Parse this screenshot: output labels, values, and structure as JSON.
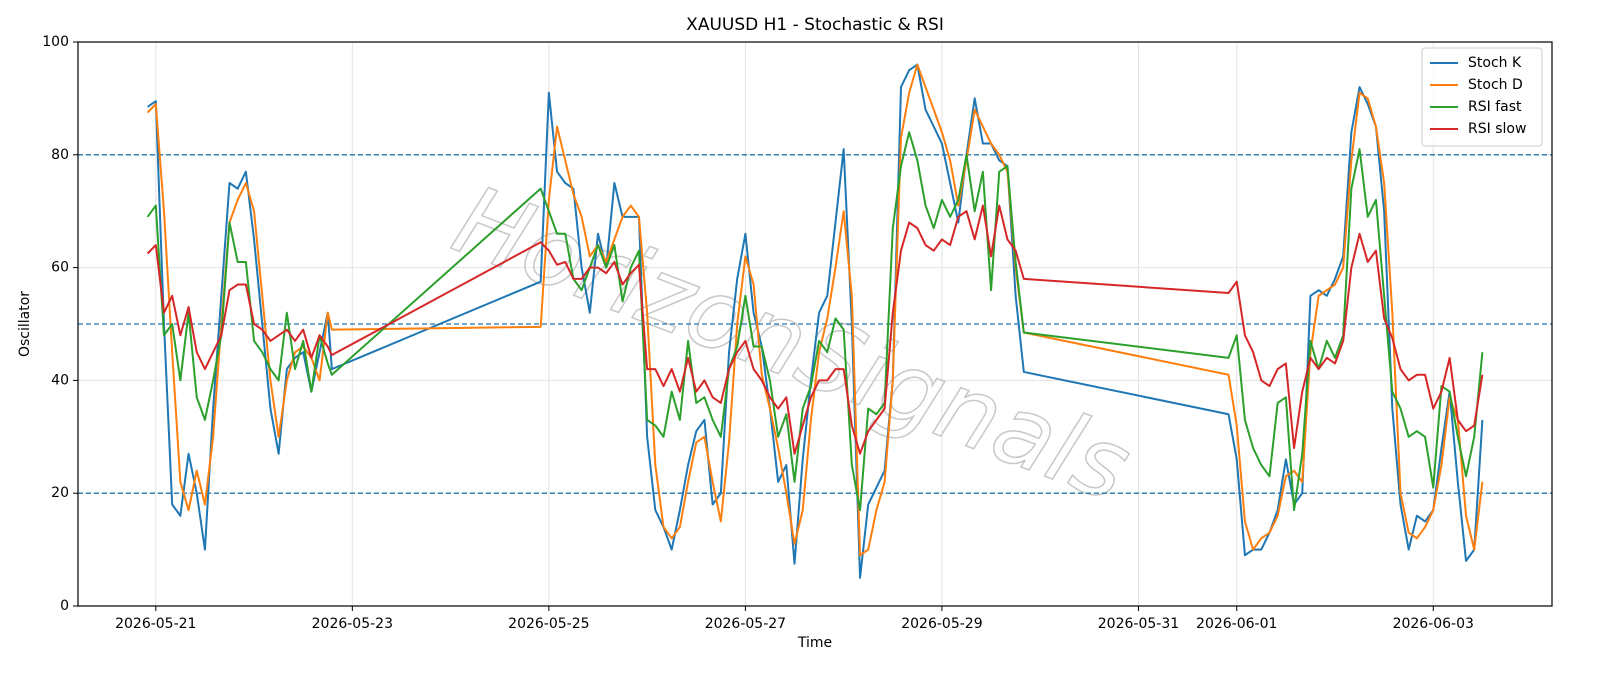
{
  "chart_data": {
    "type": "line",
    "title": "XAUUSD H1 - Stochastic & RSI",
    "xlabel": "Time",
    "ylabel": "Oscillator",
    "watermark": "HorizonSignals",
    "x": [
      "2026-05-20 22:00",
      "2026-05-21 00:00",
      "2026-05-21 02:00",
      "2026-05-21 04:00",
      "2026-05-21 06:00",
      "2026-05-21 08:00",
      "2026-05-21 10:00",
      "2026-05-21 12:00",
      "2026-05-21 14:00",
      "2026-05-21 16:00",
      "2026-05-21 18:00",
      "2026-05-21 20:00",
      "2026-05-21 22:00",
      "2026-05-22 00:00",
      "2026-05-22 02:00",
      "2026-05-22 04:00",
      "2026-05-22 06:00",
      "2026-05-22 08:00",
      "2026-05-22 10:00",
      "2026-05-22 12:00",
      "2026-05-22 14:00",
      "2026-05-22 16:00",
      "2026-05-22 18:00",
      "2026-05-22 19:00",
      "2026-05-24 22:00",
      "2026-05-25 00:00",
      "2026-05-25 02:00",
      "2026-05-25 04:00",
      "2026-05-25 06:00",
      "2026-05-25 08:00",
      "2026-05-25 10:00",
      "2026-05-25 12:00",
      "2026-05-25 14:00",
      "2026-05-25 16:00",
      "2026-05-25 18:00",
      "2026-05-25 20:00",
      "2026-05-25 22:00",
      "2026-05-26 00:00",
      "2026-05-26 02:00",
      "2026-05-26 04:00",
      "2026-05-26 06:00",
      "2026-05-26 08:00",
      "2026-05-26 10:00",
      "2026-05-26 12:00",
      "2026-05-26 14:00",
      "2026-05-26 16:00",
      "2026-05-26 18:00",
      "2026-05-26 20:00",
      "2026-05-26 22:00",
      "2026-05-27 00:00",
      "2026-05-27 02:00",
      "2026-05-27 04:00",
      "2026-05-27 06:00",
      "2026-05-27 08:00",
      "2026-05-27 10:00",
      "2026-05-27 12:00",
      "2026-05-27 14:00",
      "2026-05-27 16:00",
      "2026-05-27 18:00",
      "2026-05-27 20:00",
      "2026-05-27 22:00",
      "2026-05-28 00:00",
      "2026-05-28 02:00",
      "2026-05-28 04:00",
      "2026-05-28 06:00",
      "2026-05-28 08:00",
      "2026-05-28 10:00",
      "2026-05-28 12:00",
      "2026-05-28 14:00",
      "2026-05-28 16:00",
      "2026-05-28 18:00",
      "2026-05-28 20:00",
      "2026-05-28 22:00",
      "2026-05-29 00:00",
      "2026-05-29 02:00",
      "2026-05-29 04:00",
      "2026-05-29 06:00",
      "2026-05-29 08:00",
      "2026-05-29 10:00",
      "2026-05-29 12:00",
      "2026-05-29 14:00",
      "2026-05-29 16:00",
      "2026-05-29 18:00",
      "2026-05-29 20:00",
      "2026-05-31 22:00",
      "2026-06-01 00:00",
      "2026-06-01 02:00",
      "2026-06-01 04:00",
      "2026-06-01 06:00",
      "2026-06-01 08:00",
      "2026-06-01 10:00",
      "2026-06-01 12:00",
      "2026-06-01 14:00",
      "2026-06-01 16:00",
      "2026-06-01 18:00",
      "2026-06-01 20:00",
      "2026-06-01 22:00",
      "2026-06-02 00:00",
      "2026-06-02 02:00",
      "2026-06-02 04:00",
      "2026-06-02 06:00",
      "2026-06-02 08:00",
      "2026-06-02 10:00",
      "2026-06-02 12:00",
      "2026-06-02 14:00",
      "2026-06-02 16:00",
      "2026-06-02 18:00",
      "2026-06-02 20:00",
      "2026-06-02 22:00",
      "2026-06-03 00:00",
      "2026-06-03 02:00",
      "2026-06-03 04:00",
      "2026-06-03 06:00",
      "2026-06-03 08:00",
      "2026-06-03 10:00",
      "2026-06-03 12:00"
    ],
    "series": [
      {
        "name": "Stoch K",
        "color": "#1f77b4",
        "values": [
          88.5,
          89.5,
          50,
          18,
          16,
          27,
          20,
          10,
          35,
          55,
          75,
          74,
          77,
          65,
          50,
          35,
          27,
          42,
          44,
          45,
          38,
          45,
          52,
          42,
          57.5,
          91,
          77,
          75,
          74,
          60,
          52,
          66,
          60,
          75,
          69,
          69,
          69,
          30,
          17,
          14,
          10,
          17,
          25,
          31,
          33,
          18,
          20,
          45,
          58,
          66,
          52,
          46,
          35,
          22,
          25,
          7.5,
          26,
          40,
          52,
          55,
          68,
          81,
          50,
          5,
          18,
          21,
          24,
          40,
          92,
          95,
          96,
          88,
          85,
          82,
          75,
          68,
          80,
          90,
          82,
          82,
          79,
          78,
          55,
          41.5,
          34,
          26,
          9,
          10,
          10,
          13,
          17,
          26,
          18,
          20,
          55,
          56,
          55,
          58,
          62,
          84,
          92,
          89,
          85,
          70,
          35,
          18,
          10,
          16,
          15,
          17,
          28,
          38,
          22,
          8,
          10,
          33
        ]
      },
      {
        "name": "Stoch D",
        "color": "#ff7f0e",
        "values": [
          87.5,
          89,
          70,
          45,
          22,
          17,
          24,
          18,
          30,
          50,
          68,
          72,
          75,
          70,
          55,
          40,
          30,
          40,
          45,
          46,
          44,
          40,
          52,
          49,
          49.5,
          72,
          85,
          79,
          73,
          69,
          62,
          64,
          61,
          65,
          69,
          71,
          69,
          52,
          25,
          14,
          12,
          14,
          22,
          29,
          30,
          22,
          15,
          29,
          50,
          62,
          57,
          41,
          35,
          28,
          20,
          11,
          17,
          33,
          45,
          51,
          60,
          70,
          55,
          9,
          10,
          17,
          22,
          40,
          83,
          91,
          96,
          92,
          88,
          84,
          79,
          71,
          79,
          88,
          85,
          82,
          80,
          77,
          60,
          48.5,
          41,
          32,
          15,
          10,
          12,
          13,
          16,
          23,
          24,
          22,
          45,
          55,
          56,
          57,
          60,
          79,
          91,
          90,
          85,
          75,
          52,
          20,
          13,
          12,
          14,
          17,
          25,
          37,
          33,
          16,
          10,
          22
        ]
      },
      {
        "name": "RSI fast",
        "color": "#2ca02c",
        "values": [
          69,
          71,
          48,
          50,
          40,
          52,
          37,
          33,
          40,
          48,
          68,
          61,
          61,
          47,
          45,
          42,
          40,
          52,
          42,
          47,
          38,
          48,
          43,
          41,
          74,
          70,
          66,
          66,
          58,
          56,
          60,
          64,
          60,
          64,
          54,
          60,
          63,
          33,
          32,
          30,
          38,
          33,
          47,
          36,
          37,
          33,
          30,
          42,
          46,
          55,
          46,
          46,
          40,
          30,
          34,
          22,
          35,
          39,
          47,
          45,
          51,
          49,
          25,
          17,
          35,
          34,
          36,
          67,
          78,
          84,
          79,
          71,
          67,
          72,
          69,
          72,
          80,
          70,
          77,
          56,
          77,
          78,
          61,
          48.5,
          44,
          48,
          33,
          28,
          25,
          23,
          36,
          37,
          17,
          27,
          47,
          42,
          47,
          44,
          48,
          74,
          81,
          69,
          72,
          55,
          38,
          35,
          30,
          31,
          30,
          21,
          39,
          38,
          30,
          23,
          30,
          45
        ]
      },
      {
        "name": "RSI slow",
        "color": "#d62728",
        "values": [
          62.5,
          64,
          52,
          55,
          48,
          53,
          45,
          42,
          45,
          48,
          56,
          57,
          57,
          50,
          49,
          47,
          48,
          49,
          47,
          49,
          44,
          48,
          46,
          44.5,
          64.5,
          63,
          60.5,
          61,
          58,
          58,
          60,
          60,
          59,
          61,
          57,
          59,
          60.5,
          42,
          42,
          39,
          42,
          38,
          44,
          38,
          40,
          37,
          36,
          42,
          45,
          47,
          42,
          40,
          37,
          35,
          37,
          27,
          32,
          37,
          40,
          40,
          42,
          42,
          32,
          27,
          31,
          33,
          35,
          52,
          63,
          68,
          67,
          64,
          63,
          65,
          64,
          69,
          70,
          65,
          71,
          62,
          71,
          65,
          63,
          58,
          55.5,
          57.5,
          48,
          45,
          40,
          39,
          42,
          43,
          28,
          38,
          44,
          42,
          44,
          43,
          47,
          60,
          66,
          61,
          63,
          51,
          47.5,
          42,
          40,
          41,
          41,
          35,
          38,
          44,
          33,
          31,
          32,
          41
        ]
      }
    ],
    "xlim": [
      "2026-05-20 05:00",
      "2026-06-04 05:00"
    ],
    "xticks": [
      "2026-05-21",
      "2026-05-23",
      "2026-05-25",
      "2026-05-27",
      "2026-05-29",
      "2026-05-31",
      "2026-06-01",
      "2026-06-03"
    ],
    "ylim": [
      0,
      100
    ],
    "yticks": [
      0,
      20,
      40,
      60,
      80,
      100
    ],
    "hlines": [
      20,
      50,
      80
    ],
    "hline_color": "#1f77b4",
    "grid": true,
    "legend": "upper right"
  }
}
